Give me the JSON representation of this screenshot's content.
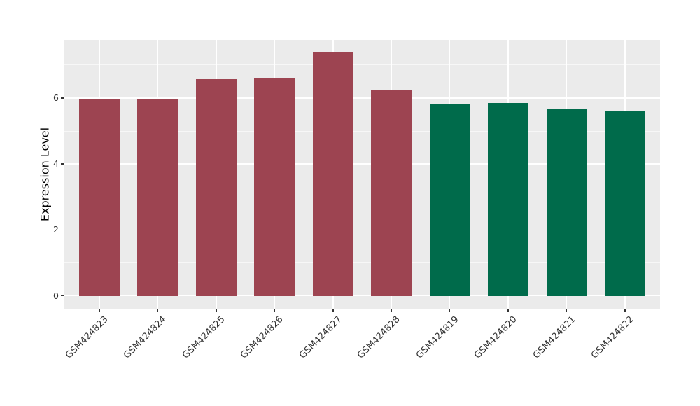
{
  "chart_data": {
    "type": "bar",
    "title": "",
    "xlabel": "",
    "ylabel": "Expression Level",
    "categories": [
      "GSM424823",
      "GSM424824",
      "GSM424825",
      "GSM424826",
      "GSM424827",
      "GSM424828",
      "GSM424819",
      "GSM424820",
      "GSM424821",
      "GSM424822"
    ],
    "values": [
      5.97,
      5.96,
      6.57,
      6.6,
      7.4,
      6.25,
      5.82,
      5.84,
      5.68,
      5.62
    ],
    "bar_colors": [
      "#9d4451",
      "#9d4451",
      "#9d4451",
      "#9d4451",
      "#9d4451",
      "#9d4451",
      "#006b4b",
      "#006b4b",
      "#006b4b",
      "#006b4b"
    ],
    "ylim": [
      -0.39,
      7.76
    ],
    "yticks": [
      0,
      2,
      4,
      6
    ],
    "yticks_minor": [
      1,
      3,
      5,
      7
    ],
    "x_label_rotation_deg": 45,
    "bar_width_fraction": 0.7,
    "grid": true,
    "legend": "none",
    "colors": {
      "plot_background": "#ebebeb",
      "figure_background": "#ffffff",
      "grid_major": "#ffffff",
      "grid_minor": "#ffffff",
      "red_group": "#9d4451",
      "green_group": "#006b4b",
      "tick_mark": "#333333",
      "tick_label": "#333333",
      "axis_title": "#000000"
    }
  }
}
